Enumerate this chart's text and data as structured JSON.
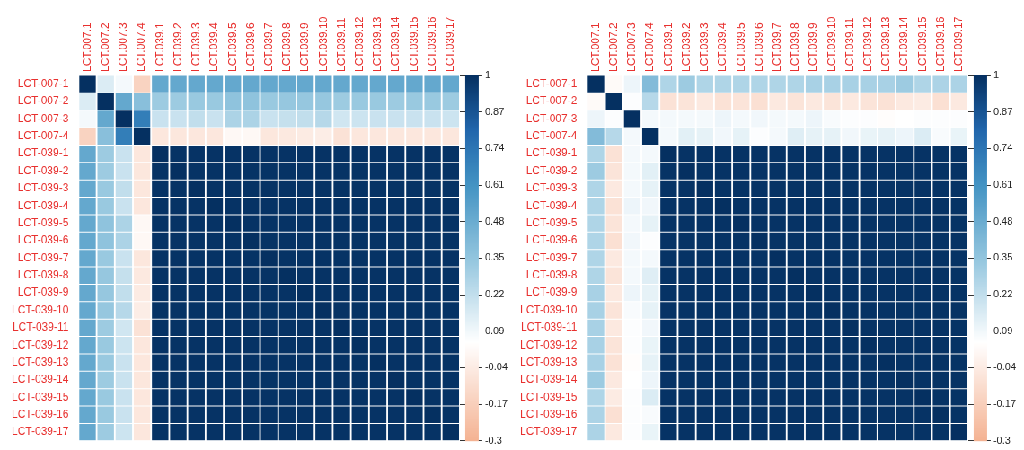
{
  "chart_data": [
    {
      "type": "heatmap",
      "categories": [
        "LCT.007.1",
        "LCT.007.2",
        "LCT.007.3",
        "LCT.007.4",
        "LCT.039.1",
        "LCT.039.2",
        "LCT.039.3",
        "LCT.039.4",
        "LCT.039.5",
        "LCT.039.6",
        "LCT.039.7",
        "LCT.039.8",
        "LCT.039.9",
        "LCT.039.10",
        "LCT.039.11",
        "LCT.039.12",
        "LCT.039.13",
        "LCT.039.14",
        "LCT.039.15",
        "LCT.039.16",
        "LCT.039.17"
      ],
      "y_categories": [
        "LCT-007-1",
        "LCT-007-2",
        "LCT-007-3",
        "LCT-007-4",
        "LCT-039-1",
        "LCT-039-2",
        "LCT-039-3",
        "LCT-039-4",
        "LCT-039-5",
        "LCT-039-6",
        "LCT-039-7",
        "LCT-039-8",
        "LCT-039-9",
        "LCT-039-10",
        "LCT-039-11",
        "LCT-039-12",
        "LCT-039-13",
        "LCT-039-14",
        "LCT-039-15",
        "LCT-039-16",
        "LCT-039-17"
      ],
      "clim": [
        -0.3,
        1
      ],
      "cticks": [
        -0.3,
        -0.17,
        -0.04,
        0.09,
        0.22,
        0.35,
        0.48,
        0.61,
        0.74,
        0.87,
        1
      ],
      "cells": [
        [
          1,
          0.15,
          0.08,
          -0.15,
          0.5,
          0.5,
          0.5,
          0.5,
          0.5,
          0.5,
          0.5,
          0.5,
          0.5,
          0.5,
          0.5,
          0.5,
          0.5,
          0.5,
          0.5,
          0.5,
          0.5
        ],
        [
          0.15,
          1,
          0.5,
          0.38,
          0.32,
          0.32,
          0.33,
          0.33,
          0.36,
          0.36,
          0.33,
          0.34,
          0.34,
          0.34,
          0.32,
          0.33,
          0.33,
          0.32,
          0.33,
          0.33,
          0.32
        ],
        [
          0.08,
          0.5,
          1,
          0.7,
          0.2,
          0.2,
          0.22,
          0.2,
          0.28,
          0.28,
          0.2,
          0.21,
          0.22,
          0.25,
          0.18,
          0.19,
          0.2,
          0.2,
          0.2,
          0.2,
          0.19
        ],
        [
          -0.15,
          0.38,
          0.7,
          1,
          -0.06,
          -0.06,
          -0.06,
          -0.06,
          0.02,
          0.02,
          -0.06,
          -0.05,
          -0.04,
          -0.03,
          -0.08,
          -0.06,
          -0.06,
          -0.06,
          -0.06,
          -0.06,
          -0.06
        ],
        [
          0.5,
          0.32,
          0.2,
          -0.06,
          1,
          0.99,
          0.99,
          0.99,
          0.99,
          0.99,
          0.99,
          0.99,
          0.99,
          0.99,
          0.99,
          0.99,
          0.99,
          0.99,
          0.99,
          0.99,
          0.99
        ],
        [
          0.5,
          0.32,
          0.2,
          -0.06,
          0.99,
          1,
          0.99,
          0.99,
          0.99,
          0.99,
          0.99,
          0.99,
          0.99,
          0.99,
          0.99,
          0.99,
          0.99,
          0.99,
          0.99,
          0.99,
          0.99
        ],
        [
          0.5,
          0.33,
          0.22,
          -0.06,
          0.99,
          0.99,
          1,
          0.99,
          0.99,
          0.99,
          0.99,
          0.99,
          0.99,
          0.99,
          0.99,
          0.99,
          0.99,
          0.99,
          0.99,
          0.99,
          0.99
        ],
        [
          0.5,
          0.33,
          0.2,
          -0.06,
          0.99,
          0.99,
          0.99,
          1,
          0.99,
          0.99,
          0.99,
          0.99,
          0.99,
          0.99,
          0.99,
          0.99,
          0.99,
          0.99,
          0.99,
          0.99,
          0.99
        ],
        [
          0.5,
          0.36,
          0.28,
          0.02,
          0.99,
          0.99,
          0.99,
          0.99,
          1,
          0.99,
          0.99,
          0.99,
          0.99,
          0.99,
          0.99,
          0.99,
          0.99,
          0.99,
          0.99,
          0.99,
          0.99
        ],
        [
          0.5,
          0.36,
          0.28,
          0.02,
          0.99,
          0.99,
          0.99,
          0.99,
          0.99,
          1,
          0.99,
          0.99,
          0.99,
          0.99,
          0.99,
          0.99,
          0.99,
          0.99,
          0.99,
          0.99,
          0.99
        ],
        [
          0.5,
          0.33,
          0.2,
          -0.06,
          0.99,
          0.99,
          0.99,
          0.99,
          0.99,
          0.99,
          1,
          0.99,
          0.99,
          0.99,
          0.99,
          0.99,
          0.99,
          0.99,
          0.99,
          0.99,
          0.99
        ],
        [
          0.5,
          0.34,
          0.21,
          -0.05,
          0.99,
          0.99,
          0.99,
          0.99,
          0.99,
          0.99,
          0.99,
          1,
          0.99,
          0.99,
          0.99,
          0.99,
          0.99,
          0.99,
          0.99,
          0.99,
          0.99
        ],
        [
          0.5,
          0.34,
          0.22,
          -0.04,
          0.99,
          0.99,
          0.99,
          0.99,
          0.99,
          0.99,
          0.99,
          0.99,
          1,
          0.99,
          0.99,
          0.99,
          0.99,
          0.99,
          0.99,
          0.99,
          0.99
        ],
        [
          0.5,
          0.34,
          0.25,
          -0.03,
          0.99,
          0.99,
          0.99,
          0.99,
          0.99,
          0.99,
          0.99,
          0.99,
          0.99,
          1,
          0.99,
          0.99,
          0.99,
          0.99,
          0.99,
          0.99,
          0.99
        ],
        [
          0.5,
          0.32,
          0.18,
          -0.08,
          0.99,
          0.99,
          0.99,
          0.99,
          0.99,
          0.99,
          0.99,
          0.99,
          0.99,
          0.99,
          1,
          0.99,
          0.99,
          0.99,
          0.99,
          0.99,
          0.99
        ],
        [
          0.5,
          0.33,
          0.19,
          -0.06,
          0.99,
          0.99,
          0.99,
          0.99,
          0.99,
          0.99,
          0.99,
          0.99,
          0.99,
          0.99,
          0.99,
          1,
          0.99,
          0.99,
          0.99,
          0.99,
          0.99
        ],
        [
          0.5,
          0.33,
          0.2,
          -0.06,
          0.99,
          0.99,
          0.99,
          0.99,
          0.99,
          0.99,
          0.99,
          0.99,
          0.99,
          0.99,
          0.99,
          0.99,
          1,
          0.99,
          0.99,
          0.99,
          0.99
        ],
        [
          0.5,
          0.32,
          0.2,
          -0.06,
          0.99,
          0.99,
          0.99,
          0.99,
          0.99,
          0.99,
          0.99,
          0.99,
          0.99,
          0.99,
          0.99,
          0.99,
          0.99,
          1,
          0.99,
          0.99,
          0.99
        ],
        [
          0.5,
          0.33,
          0.2,
          -0.06,
          0.99,
          0.99,
          0.99,
          0.99,
          0.99,
          0.99,
          0.99,
          0.99,
          0.99,
          0.99,
          0.99,
          0.99,
          0.99,
          0.99,
          1,
          0.99,
          0.99
        ],
        [
          0.5,
          0.33,
          0.2,
          -0.06,
          0.99,
          0.99,
          0.99,
          0.99,
          0.99,
          0.99,
          0.99,
          0.99,
          0.99,
          0.99,
          0.99,
          0.99,
          0.99,
          0.99,
          0.99,
          1,
          0.99
        ],
        [
          0.5,
          0.32,
          0.19,
          -0.06,
          0.99,
          0.99,
          0.99,
          0.99,
          0.99,
          0.99,
          0.99,
          0.99,
          0.99,
          0.99,
          0.99,
          0.99,
          0.99,
          0.99,
          0.99,
          0.99,
          1
        ]
      ]
    },
    {
      "type": "heatmap",
      "categories": [
        "LCT.007.1",
        "LCT.007.2",
        "LCT.007.3",
        "LCT.007.4",
        "LCT.039.1",
        "LCT.039.2",
        "LCT.039.3",
        "LCT.039.4",
        "LCT.039.5",
        "LCT.039.6",
        "LCT.039.7",
        "LCT.039.8",
        "LCT.039.9",
        "LCT.039.10",
        "LCT.039.11",
        "LCT.039.12",
        "LCT.039.13",
        "LCT.039.14",
        "LCT.039.15",
        "LCT.039.16",
        "LCT.039.17"
      ],
      "y_categories": [
        "LCT-007-1",
        "LCT-007-2",
        "LCT-007-3",
        "LCT-007-4",
        "LCT-039-1",
        "LCT-039-2",
        "LCT-039-3",
        "LCT-039-4",
        "LCT-039-5",
        "LCT-039-6",
        "LCT-039-7",
        "LCT-039-8",
        "LCT-039-9",
        "LCT-039-10",
        "LCT-039-11",
        "LCT-039-12",
        "LCT-039-13",
        "LCT-039-14",
        "LCT-039-15",
        "LCT-039-16",
        "LCT-039-17"
      ],
      "clim": [
        -0.3,
        1
      ],
      "cticks": [
        -0.3,
        -0.17,
        -0.04,
        0.09,
        0.22,
        0.35,
        0.48,
        0.61,
        0.74,
        0.87,
        1
      ],
      "cells": [
        [
          1,
          0.03,
          0.1,
          0.4,
          0.27,
          0.32,
          0.27,
          0.27,
          0.27,
          0.27,
          0.27,
          0.27,
          0.29,
          0.29,
          0.29,
          0.29,
          0.29,
          0.32,
          0.27,
          0.28,
          0.28
        ],
        [
          0.03,
          1,
          0.06,
          0.25,
          -0.08,
          -0.07,
          -0.05,
          -0.08,
          -0.07,
          -0.09,
          -0.05,
          -0.07,
          -0.05,
          -0.07,
          -0.05,
          -0.07,
          -0.08,
          -0.05,
          -0.04,
          -0.09,
          -0.05
        ],
        [
          0.1,
          0.06,
          1,
          0.08,
          0.08,
          0.08,
          0.08,
          0.1,
          0.08,
          0.09,
          0.08,
          0.08,
          0.1,
          0.07,
          0.06,
          0.06,
          0.04,
          0.05,
          0.06,
          0.06,
          0.06
        ],
        [
          0.4,
          0.25,
          0.08,
          1,
          0.08,
          0.13,
          0.12,
          0.09,
          0.12,
          0.06,
          0.08,
          0.14,
          0.12,
          0.12,
          0.09,
          0.11,
          0.12,
          0.1,
          0.15,
          0.07,
          0.11
        ],
        [
          0.27,
          -0.08,
          0.08,
          0.08,
          1,
          0.99,
          0.99,
          0.99,
          0.99,
          0.99,
          0.99,
          0.99,
          0.99,
          0.99,
          0.99,
          0.99,
          0.99,
          0.99,
          0.99,
          0.99,
          0.99
        ],
        [
          0.32,
          -0.07,
          0.08,
          0.13,
          0.99,
          1,
          0.99,
          0.99,
          0.99,
          0.99,
          0.99,
          0.99,
          0.99,
          0.99,
          0.99,
          0.99,
          0.99,
          0.99,
          0.99,
          0.99,
          0.99
        ],
        [
          0.27,
          -0.05,
          0.08,
          0.12,
          0.99,
          0.99,
          1,
          0.99,
          0.99,
          0.99,
          0.99,
          0.99,
          0.99,
          0.99,
          0.99,
          0.99,
          0.99,
          0.99,
          0.99,
          0.99,
          0.99
        ],
        [
          0.27,
          -0.08,
          0.1,
          0.09,
          0.99,
          0.99,
          0.99,
          1,
          0.99,
          0.99,
          0.99,
          0.99,
          0.99,
          0.99,
          0.99,
          0.99,
          0.99,
          0.99,
          0.99,
          0.99,
          0.99
        ],
        [
          0.27,
          -0.07,
          0.08,
          0.12,
          0.99,
          0.99,
          0.99,
          0.99,
          1,
          0.99,
          0.99,
          0.99,
          0.99,
          0.99,
          0.99,
          0.99,
          0.99,
          0.99,
          0.99,
          0.99,
          0.99
        ],
        [
          0.27,
          -0.09,
          0.09,
          0.06,
          0.99,
          0.99,
          0.99,
          0.99,
          0.99,
          1,
          0.99,
          0.99,
          0.99,
          0.99,
          0.99,
          0.99,
          0.99,
          0.99,
          0.99,
          0.99,
          0.99
        ],
        [
          0.27,
          -0.05,
          0.08,
          0.08,
          0.99,
          0.99,
          0.99,
          0.99,
          0.99,
          0.99,
          1,
          0.99,
          0.99,
          0.99,
          0.99,
          0.99,
          0.99,
          0.99,
          0.99,
          0.99,
          0.99
        ],
        [
          0.27,
          -0.07,
          0.08,
          0.14,
          0.99,
          0.99,
          0.99,
          0.99,
          0.99,
          0.99,
          0.99,
          1,
          0.99,
          0.99,
          0.99,
          0.99,
          0.99,
          0.99,
          0.99,
          0.99,
          0.99
        ],
        [
          0.29,
          -0.05,
          0.1,
          0.12,
          0.99,
          0.99,
          0.99,
          0.99,
          0.99,
          0.99,
          0.99,
          0.99,
          1,
          0.99,
          0.99,
          0.99,
          0.99,
          0.99,
          0.99,
          0.99,
          0.99
        ],
        [
          0.29,
          -0.07,
          0.07,
          0.12,
          0.99,
          0.99,
          0.99,
          0.99,
          0.99,
          0.99,
          0.99,
          0.99,
          0.99,
          1,
          0.99,
          0.99,
          0.99,
          0.99,
          0.99,
          0.99,
          0.99
        ],
        [
          0.29,
          -0.05,
          0.06,
          0.09,
          0.99,
          0.99,
          0.99,
          0.99,
          0.99,
          0.99,
          0.99,
          0.99,
          0.99,
          0.99,
          1,
          0.99,
          0.99,
          0.99,
          0.99,
          0.99,
          0.99
        ],
        [
          0.29,
          -0.07,
          0.06,
          0.11,
          0.99,
          0.99,
          0.99,
          0.99,
          0.99,
          0.99,
          0.99,
          0.99,
          0.99,
          0.99,
          0.99,
          1,
          0.99,
          0.99,
          0.99,
          0.99,
          0.99
        ],
        [
          0.29,
          -0.08,
          0.04,
          0.12,
          0.99,
          0.99,
          0.99,
          0.99,
          0.99,
          0.99,
          0.99,
          0.99,
          0.99,
          0.99,
          0.99,
          0.99,
          1,
          0.99,
          0.99,
          0.99,
          0.99
        ],
        [
          0.32,
          -0.05,
          0.05,
          0.1,
          0.99,
          0.99,
          0.99,
          0.99,
          0.99,
          0.99,
          0.99,
          0.99,
          0.99,
          0.99,
          0.99,
          0.99,
          0.99,
          1,
          0.99,
          0.99,
          0.99
        ],
        [
          0.27,
          -0.04,
          0.06,
          0.15,
          0.99,
          0.99,
          0.99,
          0.99,
          0.99,
          0.99,
          0.99,
          0.99,
          0.99,
          0.99,
          0.99,
          0.99,
          0.99,
          0.99,
          1,
          0.99,
          0.99
        ],
        [
          0.28,
          -0.09,
          0.06,
          0.07,
          0.99,
          0.99,
          0.99,
          0.99,
          0.99,
          0.99,
          0.99,
          0.99,
          0.99,
          0.99,
          0.99,
          0.99,
          0.99,
          0.99,
          0.99,
          1,
          0.99
        ],
        [
          0.28,
          -0.05,
          0.06,
          0.11,
          0.99,
          0.99,
          0.99,
          0.99,
          0.99,
          0.99,
          0.99,
          0.99,
          0.99,
          0.99,
          0.99,
          0.99,
          0.99,
          0.99,
          0.99,
          0.99,
          1
        ]
      ]
    }
  ]
}
